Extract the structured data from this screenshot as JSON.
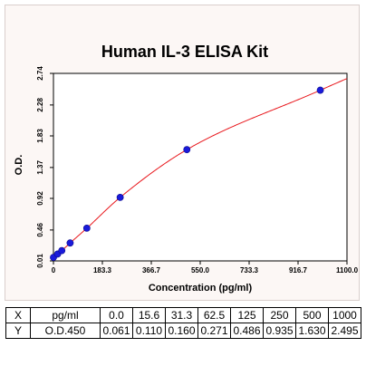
{
  "chart_data": {
    "type": "scatter",
    "title": "Human IL-3 ELISA Kit",
    "xlabel": "Concentration (pg/ml)",
    "ylabel": "O.D.",
    "xlim": [
      0,
      1100
    ],
    "ylim": [
      0.01,
      2.74
    ],
    "x_ticks": [
      "0",
      "183.3",
      "366.7",
      "550.0",
      "733.3",
      "916.7",
      "1100.0"
    ],
    "y_ticks": [
      "0.01",
      "0.46",
      "0.92",
      "1.37",
      "1.83",
      "2.28",
      "2.74"
    ],
    "series": [
      {
        "x": [
          0,
          15.6,
          31.3,
          62.5,
          125,
          250,
          500,
          1000
        ],
        "y": [
          0.061,
          0.11,
          0.16,
          0.271,
          0.486,
          0.935,
          1.63,
          2.495
        ]
      }
    ],
    "fit_curve": true,
    "point_color": "#1a1adb",
    "curve_color": "#e8161b",
    "grid": false
  },
  "table": {
    "x_header": "X",
    "x_unit": "pg/ml",
    "x_values": [
      "0.0",
      "15.6",
      "31.3",
      "62.5",
      "125",
      "250",
      "500",
      "1000"
    ],
    "y_header": "Y",
    "y_unit": "O.D.450",
    "y_values": [
      "0.061",
      "0.110",
      "0.160",
      "0.271",
      "0.486",
      "0.935",
      "1.630",
      "2.495"
    ]
  }
}
